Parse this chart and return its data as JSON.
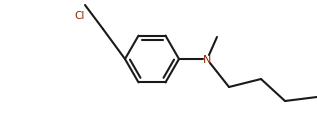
{
  "bg_color": "#ffffff",
  "bond_color": "#1a1a1a",
  "heteroatom_color": "#8B2500",
  "line_width": 1.5,
  "fig_width": 3.17,
  "fig_height": 1.16,
  "dpi": 100
}
